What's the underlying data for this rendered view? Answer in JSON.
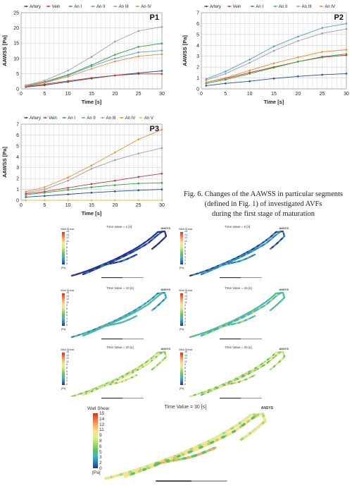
{
  "charts": [
    {
      "panel": "P1",
      "ylabel": "AAWSS [Pa]",
      "xlabel": "Time [s]",
      "xticks": [
        0,
        5,
        10,
        15,
        20,
        25,
        30
      ],
      "yticks": [
        0,
        5,
        10,
        15,
        20,
        25
      ],
      "legend": [
        "Artery",
        "Vein",
        "An I",
        "An II",
        "An III",
        "An IV"
      ]
    },
    {
      "panel": "P2",
      "ylabel": "AAWSS [Pa]",
      "xlabel": "Time [s]",
      "xticks": [
        0,
        5,
        10,
        15,
        20,
        25,
        30
      ],
      "yticks": [
        0,
        1,
        2,
        3,
        4,
        5,
        6,
        7
      ],
      "legend": [
        "Artery",
        "Vein",
        "An I",
        "An II",
        "An III",
        "An IV"
      ]
    },
    {
      "panel": "P3",
      "ylabel": "AAWSS [Pa]",
      "xlabel": "Time [s]",
      "xticks": [
        0,
        5,
        10,
        15,
        20,
        25,
        30
      ],
      "yticks": [
        0,
        1,
        2,
        3,
        4,
        5,
        6,
        7
      ],
      "legend": [
        "Artery",
        "Vein",
        "An I",
        "An II",
        "An III",
        "An IV",
        "An V"
      ]
    }
  ],
  "chart_data": [
    {
      "type": "line",
      "title": "P1",
      "xlabel": "Time [s]",
      "ylabel": "AAWSS [Pa]",
      "xlim": [
        0,
        30
      ],
      "ylim": [
        0,
        25
      ],
      "grid": true,
      "legend_position": "top",
      "x": [
        1,
        5,
        10,
        15,
        20,
        25,
        30
      ],
      "series": [
        {
          "name": "Artery",
          "color": "#1f4e9a",
          "values": [
            0.6,
            1.2,
            2.3,
            3.4,
            4.4,
            5.2,
            5.9
          ]
        },
        {
          "name": "Vein",
          "color": "#c0392b",
          "values": [
            0.8,
            1.5,
            2.6,
            3.6,
            4.4,
            4.9,
            4.9
          ]
        },
        {
          "name": "An I",
          "color": "#2e9e3e",
          "values": [
            1.0,
            2.3,
            4.6,
            7.8,
            11.2,
            13.8,
            14.9
          ]
        },
        {
          "name": "An II",
          "color": "#4aa6c9",
          "values": [
            0.9,
            2.1,
            4.4,
            7.4,
            10.0,
            12.0,
            12.6
          ]
        },
        {
          "name": "An III",
          "color": "#9b9bb0",
          "values": [
            1.2,
            2.7,
            6.0,
            10.5,
            15.5,
            19.0,
            20.4
          ]
        },
        {
          "name": "An IV",
          "color": "#ef8a2f",
          "values": [
            1.0,
            2.0,
            4.0,
            6.6,
            9.0,
            10.7,
            11.4
          ]
        }
      ]
    },
    {
      "type": "line",
      "title": "P2",
      "xlabel": "Time [s]",
      "ylabel": "AAWSS [Pa]",
      "xlim": [
        0,
        30
      ],
      "ylim": [
        0,
        7
      ],
      "grid": true,
      "legend_position": "top",
      "x": [
        1,
        5,
        10,
        15,
        20,
        25,
        30
      ],
      "series": [
        {
          "name": "Artery",
          "color": "#1f4e9a",
          "values": [
            0.3,
            0.5,
            0.7,
            0.95,
            1.15,
            1.3,
            1.4
          ]
        },
        {
          "name": "Vein",
          "color": "#c0392b",
          "values": [
            0.6,
            0.95,
            1.5,
            2.0,
            2.5,
            2.9,
            3.1
          ]
        },
        {
          "name": "An I",
          "color": "#2e9e3e",
          "values": [
            0.5,
            0.85,
            1.4,
            1.95,
            2.5,
            2.95,
            3.2
          ]
        },
        {
          "name": "An II",
          "color": "#4aa6c9",
          "values": [
            0.9,
            1.6,
            2.7,
            3.9,
            4.8,
            5.6,
            6.0
          ]
        },
        {
          "name": "An III",
          "color": "#9b9bb0",
          "values": [
            0.8,
            1.4,
            2.4,
            3.5,
            4.4,
            5.1,
            5.5
          ]
        },
        {
          "name": "An IV",
          "color": "#ef8a2f",
          "values": [
            0.6,
            1.0,
            1.7,
            2.35,
            2.9,
            3.4,
            3.6
          ]
        }
      ]
    },
    {
      "type": "line",
      "title": "P3",
      "xlabel": "Time [s]",
      "ylabel": "AAWSS [Pa]",
      "xlim": [
        0,
        30
      ],
      "ylim": [
        0,
        7
      ],
      "grid": true,
      "legend_position": "top",
      "x": [
        1,
        5,
        10,
        15,
        20,
        25,
        30
      ],
      "series": [
        {
          "name": "Artery",
          "color": "#1f4e9a",
          "values": [
            0.3,
            0.4,
            0.55,
            0.7,
            0.82,
            0.92,
            1.0
          ]
        },
        {
          "name": "Vein",
          "color": "#c0392b",
          "values": [
            0.6,
            0.8,
            1.15,
            1.5,
            1.8,
            2.15,
            2.45
          ]
        },
        {
          "name": "An I",
          "color": "#2e9e3e",
          "values": [
            0.5,
            0.7,
            0.95,
            1.2,
            1.4,
            1.55,
            1.6
          ]
        },
        {
          "name": "An II",
          "color": "#4aa6c9",
          "values": [
            0.0,
            0.0,
            0.0,
            0.0,
            0.0,
            0.0,
            0.0
          ]
        },
        {
          "name": "An III",
          "color": "#9b9bb0",
          "values": [
            0.7,
            1.0,
            1.8,
            2.9,
            3.7,
            4.3,
            4.8
          ]
        },
        {
          "name": "An IV",
          "color": "#ef8a2f",
          "values": [
            0.8,
            1.2,
            2.1,
            3.2,
            4.4,
            5.6,
            6.5
          ]
        },
        {
          "name": "An V",
          "color": "#e8c43a",
          "values": [
            0.0,
            0.0,
            0.0,
            0.0,
            0.0,
            0.0,
            0.0
          ]
        }
      ]
    }
  ],
  "caption": {
    "line1": "Fig. 6. Changes of the AAWSS in particular segments",
    "line2": "(defined in Fig. 1) of investigated AVFs",
    "line3": "during the first stage of maturation"
  },
  "cfd": {
    "colorbar_title": "Wall Shear",
    "colorbar_unit": "[Pa]",
    "colorbar_ticks": [
      "15",
      "14",
      "12",
      "11",
      "9",
      "8",
      "6",
      "5",
      "3",
      "2",
      "0"
    ],
    "colormap": [
      "#d7301f",
      "#f46d43",
      "#fdae61",
      "#fee08b",
      "#d9ef8b",
      "#a6d96a",
      "#66bd63",
      "#41b6c4",
      "#2c7fb8",
      "#253494"
    ],
    "brand": "ANSYS",
    "panels": [
      {
        "time_label": "Time Value = 1 [s]"
      },
      {
        "time_label": "Time Value = 5 [s]"
      },
      {
        "time_label": "Time Value = 10 [s]"
      },
      {
        "time_label": "Time Value = 15 [s]"
      },
      {
        "time_label": "Time Value = 20 [s]"
      },
      {
        "time_label": "Time Value = 25 [s]"
      },
      {
        "time_label": "Time Value = 30 [s]"
      }
    ]
  }
}
